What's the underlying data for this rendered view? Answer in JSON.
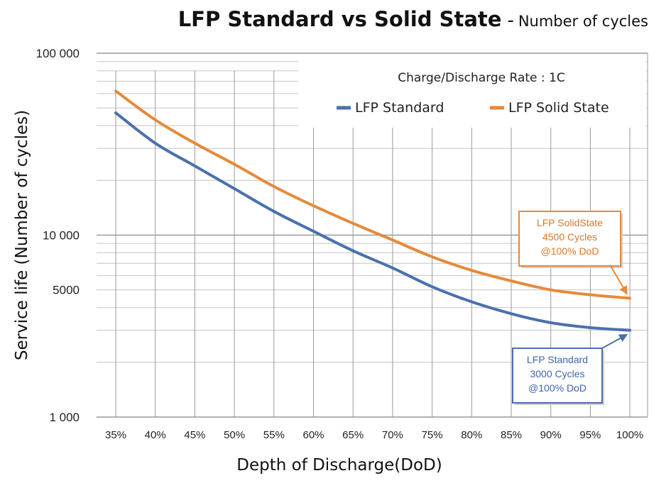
{
  "title": {
    "main": "LFP Standard vs  Solid State",
    "separator": "-",
    "subtitle": "Number of cycles"
  },
  "chart_data": {
    "type": "line",
    "xlabel": "Depth of Discharge(DoD)",
    "ylabel": "Service life (Number of cycles)",
    "y_scale": "log",
    "ylim": [
      1000,
      100000
    ],
    "grid": true,
    "legend_position": "top-right",
    "annotation": "Charge/Discharge Rate : 1C",
    "categories": [
      "35%",
      "40%",
      "45%",
      "50%",
      "55%",
      "60%",
      "65%",
      "70%",
      "75%",
      "80%",
      "85%",
      "90%",
      "95%",
      "100%"
    ],
    "y_ticks": [
      {
        "value": 1000,
        "label": "1 000"
      },
      {
        "value": 5000,
        "label": "5000"
      },
      {
        "value": 10000,
        "label": "10 000"
      },
      {
        "value": 100000,
        "label": "100 000"
      }
    ],
    "series": [
      {
        "name": "LFP Standard",
        "color": "#4a70ae",
        "values": [
          47000,
          32000,
          24000,
          18000,
          13500,
          10500,
          8200,
          6600,
          5200,
          4300,
          3700,
          3300,
          3100,
          3000
        ]
      },
      {
        "name": "LFP Solid State",
        "color": "#e58a3a",
        "values": [
          62000,
          43000,
          32000,
          24500,
          18500,
          14500,
          11600,
          9400,
          7600,
          6400,
          5600,
          5000,
          4700,
          4500
        ]
      }
    ],
    "callouts": [
      {
        "series": "LFP Solid State",
        "lines": [
          "LFP SolidState",
          "4500 Cycles",
          "@100% DoD"
        ],
        "border": "#e58a3a",
        "text_color": "#d4782e"
      },
      {
        "series": "LFP Standard",
        "lines": [
          "LFP Standard",
          "3000 Cycles",
          "@100% DoD"
        ],
        "border": "#4a70ae",
        "text_color": "#3e64a8"
      }
    ]
  }
}
